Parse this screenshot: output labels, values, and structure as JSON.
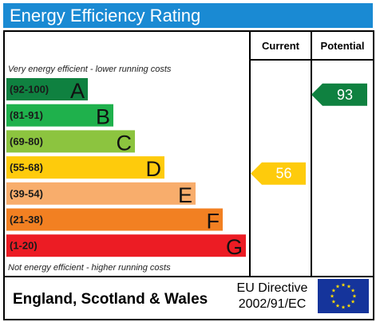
{
  "title": "Energy Efficiency Rating",
  "columns": {
    "current": "Current",
    "potential": "Potential"
  },
  "notes": {
    "top": "Very energy efficient - lower running costs",
    "bottom": "Not energy efficient - higher running costs"
  },
  "footer": {
    "country": "England, Scotland & Wales",
    "directive_line1": "EU Directive",
    "directive_line2": "2002/91/EC"
  },
  "colors": {
    "title_bar": "#1a8ad3",
    "eu_flag": "#15349b",
    "eu_stars": "#ffdd00"
  },
  "chart_data": {
    "type": "bar",
    "bands": [
      {
        "range": "(92-100)",
        "letter": "A",
        "color": "#0f8140"
      },
      {
        "range": "(81-91)",
        "letter": "B",
        "color": "#1fb14c"
      },
      {
        "range": "(69-80)",
        "letter": "C",
        "color": "#8cc43f"
      },
      {
        "range": "(55-68)",
        "letter": "D",
        "color": "#fecb0c"
      },
      {
        "range": "(39-54)",
        "letter": "E",
        "color": "#f8ad6c"
      },
      {
        "range": "(21-38)",
        "letter": "F",
        "color": "#f28022"
      },
      {
        "range": "(1-20)",
        "letter": "G",
        "color": "#ec1c24"
      }
    ],
    "current": {
      "value": 56,
      "color": "#fecb0c"
    },
    "potential": {
      "value": 93,
      "color": "#0f8140"
    }
  }
}
